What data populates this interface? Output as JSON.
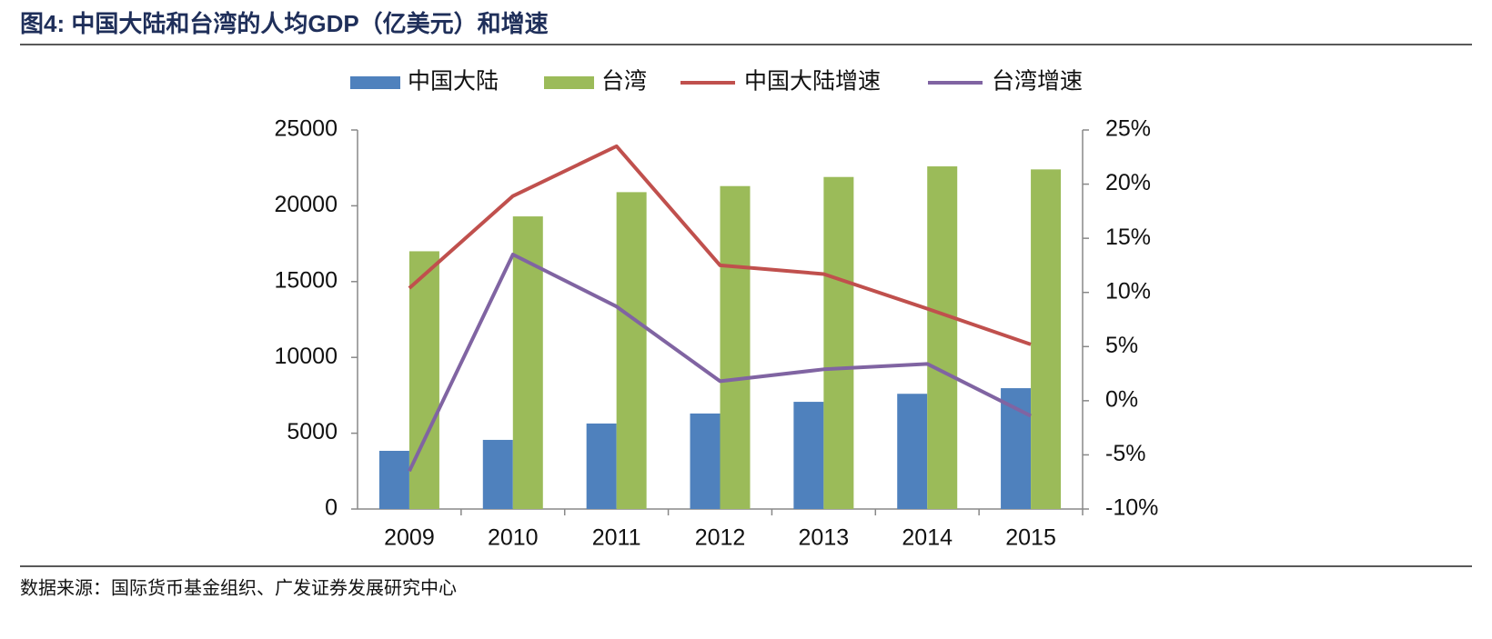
{
  "header": {
    "title": "图4:  中国大陆和台湾的人均GDP（亿美元）和增速"
  },
  "chart_data": {
    "type": "bar",
    "categories": [
      "2009",
      "2010",
      "2011",
      "2012",
      "2013",
      "2014",
      "2015"
    ],
    "series": [
      {
        "name": "中国大陆",
        "type": "bar",
        "color": "#4f81bd",
        "values": [
          3838,
          4560,
          5640,
          6300,
          7070,
          7600,
          7970
        ]
      },
      {
        "name": "台湾",
        "type": "bar",
        "color": "#9bbb59",
        "values": [
          17000,
          19300,
          20900,
          21300,
          21900,
          22600,
          22400
        ]
      },
      {
        "name": "中国大陆增速",
        "type": "line",
        "axis": "y2",
        "color": "#c0504d",
        "values": [
          10.4,
          18.9,
          23.5,
          12.5,
          11.7,
          8.5,
          5.2
        ]
      },
      {
        "name": "台湾增速",
        "type": "line",
        "axis": "y2",
        "color": "#8064a2",
        "values": [
          -6.5,
          13.5,
          8.7,
          1.8,
          2.9,
          3.4,
          -1.4
        ]
      }
    ],
    "ylim": [
      0,
      25000
    ],
    "yticks": [
      0,
      5000,
      10000,
      15000,
      20000,
      25000
    ],
    "y2lim": [
      -10,
      25
    ],
    "y2ticks": [
      {
        "value": -10,
        "label": "-10%"
      },
      {
        "value": -5,
        "label": "-5%"
      },
      {
        "value": 0,
        "label": "0%"
      },
      {
        "value": 5,
        "label": "5%"
      },
      {
        "value": 10,
        "label": "10%"
      },
      {
        "value": 15,
        "label": "15%"
      },
      {
        "value": 20,
        "label": "20%"
      },
      {
        "value": 25,
        "label": "25%"
      }
    ],
    "grid": false
  },
  "footer": {
    "source": "数据来源：国际货币基金组织、广发证券发展研究中心"
  }
}
